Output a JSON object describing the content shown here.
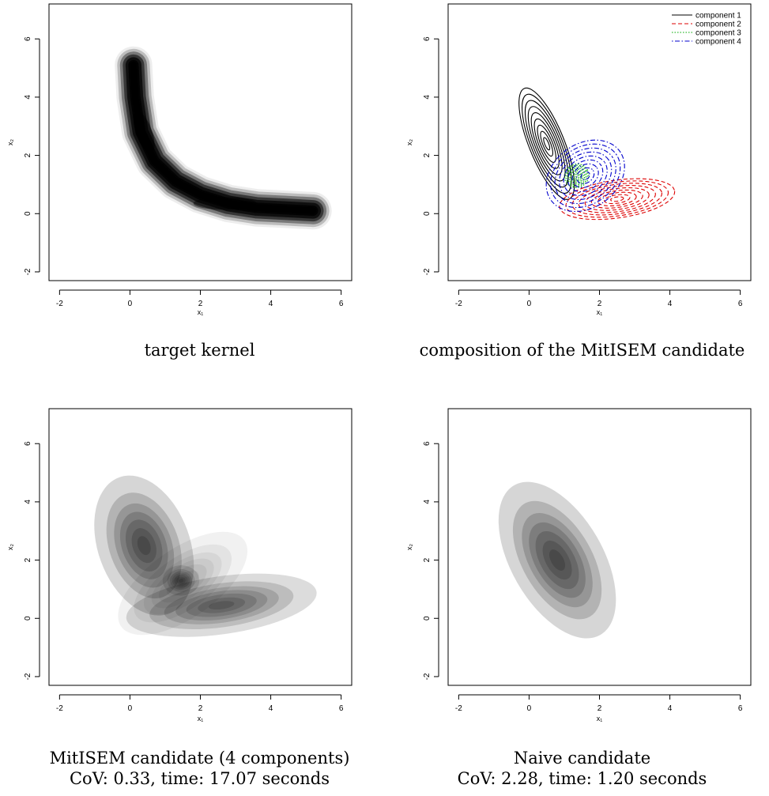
{
  "chart_data": [
    {
      "type": "heatmap",
      "xlabel": "x₁",
      "ylabel": "x₂",
      "xlim": [
        -2.3,
        6.3
      ],
      "ylim": [
        -2.3,
        7.2
      ],
      "x_ticks": [
        -2,
        0,
        2,
        4,
        6
      ],
      "y_ticks": [
        -2,
        0,
        2,
        4,
        6
      ],
      "caption": [
        "target kernel"
      ],
      "shape": "banana",
      "peak": [
        0.3,
        2.8
      ],
      "support_x": [
        0,
        5.3
      ],
      "support_y": [
        -0.5,
        5.3
      ],
      "ridge_curve": [
        [
          0.1,
          5.1
        ],
        [
          0.15,
          4.0
        ],
        [
          0.3,
          2.8
        ],
        [
          0.7,
          1.8
        ],
        [
          1.3,
          1.1
        ],
        [
          2.0,
          0.65
        ],
        [
          2.8,
          0.35
        ],
        [
          3.6,
          0.2
        ],
        [
          4.4,
          0.15
        ],
        [
          5.2,
          0.1
        ]
      ]
    },
    {
      "type": "contour",
      "xlabel": "x₁",
      "ylabel": "x₂",
      "xlim": [
        -2.3,
        6.3
      ],
      "ylim": [
        -2.3,
        7.2
      ],
      "x_ticks": [
        -2,
        0,
        2,
        4,
        6
      ],
      "y_ticks": [
        -2,
        0,
        2,
        4,
        6
      ],
      "caption": [
        "composition of the MitISEM candidate"
      ],
      "legend_position": "top-right",
      "series": [
        {
          "name": "component 1",
          "color": "#000000",
          "dash": "solid",
          "center": [
            0.5,
            2.4
          ],
          "outer_x": [
            0,
            1.0
          ],
          "outer_y": [
            0.4,
            4.5
          ],
          "angle_deg": -22
        },
        {
          "name": "component 2",
          "color": "#dd0000",
          "dash": "dashed",
          "center": [
            2.5,
            0.5
          ],
          "outer_x": [
            1.2,
            4.5
          ],
          "outer_y": [
            -0.1,
            1.2
          ],
          "angle_deg": -8
        },
        {
          "name": "component 3",
          "color": "#00aa00",
          "dash": "dotted",
          "center": [
            1.35,
            1.3
          ],
          "outer_x": [
            1.0,
            1.7
          ],
          "outer_y": [
            0.9,
            1.7
          ],
          "angle_deg": -30
        },
        {
          "name": "component 4",
          "color": "#0000cc",
          "dash": "dotdash",
          "center": [
            1.6,
            1.3
          ],
          "outer_x": [
            0.5,
            2.9
          ],
          "outer_y": [
            0.2,
            2.4
          ],
          "angle_deg": -35
        }
      ]
    },
    {
      "type": "heatmap",
      "xlabel": "x₁",
      "ylabel": "x₂",
      "xlim": [
        -2.3,
        6.3
      ],
      "ylim": [
        -2.3,
        7.2
      ],
      "x_ticks": [
        -2,
        0,
        2,
        4,
        6
      ],
      "y_ticks": [
        -2,
        0,
        2,
        4,
        6
      ],
      "caption": [
        "MitISEM candidate (4 components)",
        "CoV: 0.33, time: 17.07 seconds"
      ],
      "shape": "mixture",
      "components": [
        {
          "center": [
            0.4,
            2.5
          ],
          "sx": 0.55,
          "sy": 1.05,
          "angle_deg": -20,
          "weight": 1.0
        },
        {
          "center": [
            2.6,
            0.45
          ],
          "sx": 1.15,
          "sy": 0.42,
          "angle_deg": -8,
          "weight": 0.85
        },
        {
          "center": [
            1.45,
            1.3
          ],
          "sx": 0.22,
          "sy": 0.22,
          "angle_deg": 0,
          "weight": 0.7
        },
        {
          "center": [
            1.5,
            1.2
          ],
          "sx": 0.9,
          "sy": 0.5,
          "angle_deg": -35,
          "weight": 0.35
        }
      ]
    },
    {
      "type": "heatmap",
      "xlabel": "x₁",
      "ylabel": "x₂",
      "xlim": [
        -2.3,
        6.3
      ],
      "ylim": [
        -2.3,
        7.2
      ],
      "x_ticks": [
        -2,
        0,
        2,
        4,
        6
      ],
      "y_ticks": [
        -2,
        0,
        2,
        4,
        6
      ],
      "caption": [
        "Naive candidate",
        "CoV: 2.28, time: 1.20 seconds"
      ],
      "shape": "gaussian",
      "components": [
        {
          "center": [
            0.8,
            2.0
          ],
          "sx": 0.55,
          "sy": 1.25,
          "angle_deg": -30,
          "weight": 1.0
        }
      ],
      "support_x": [
        -0.7,
        2.3
      ],
      "support_y": [
        0.2,
        3.8
      ]
    }
  ]
}
